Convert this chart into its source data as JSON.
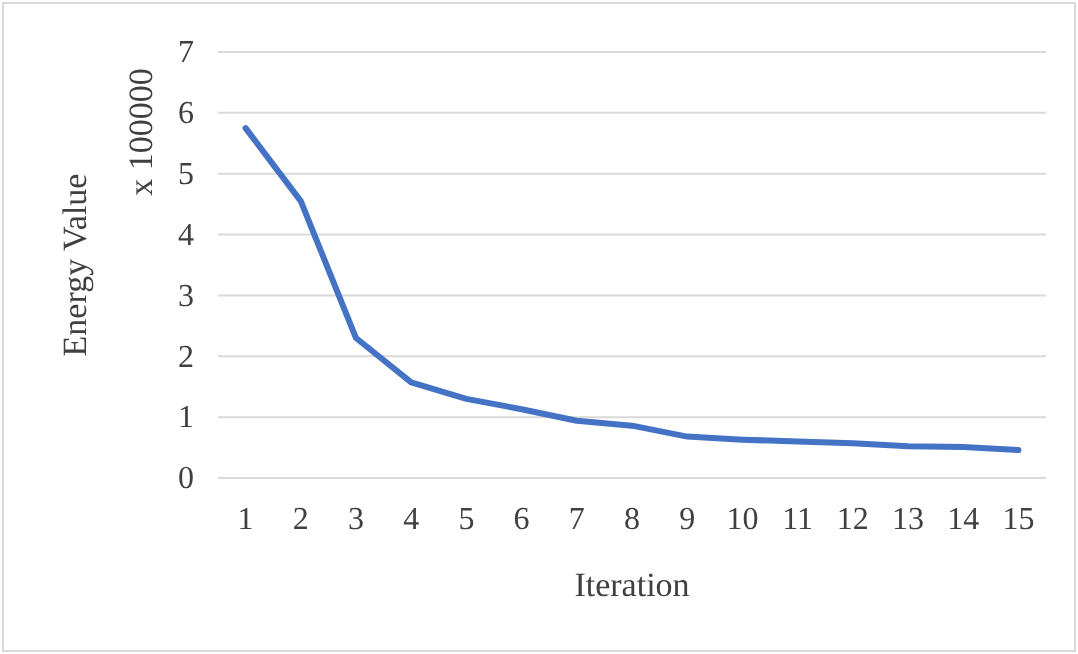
{
  "chart_data": {
    "type": "line",
    "xlabel": "Iteration",
    "ylabel": "Energy Value",
    "annotations": [
      "x 100000"
    ],
    "categories": [
      "1",
      "2",
      "3",
      "4",
      "5",
      "6",
      "7",
      "8",
      "9",
      "10",
      "11",
      "12",
      "13",
      "14",
      "15"
    ],
    "series": [
      {
        "color": "#4472c4",
        "values": [
          5.75,
          4.55,
          2.3,
          1.57,
          1.3,
          1.13,
          0.94,
          0.86,
          0.68,
          0.63,
          0.6,
          0.57,
          0.52,
          0.51,
          0.46
        ]
      }
    ],
    "ylim": [
      0,
      7
    ],
    "yticks": [
      0,
      1,
      2,
      3,
      4,
      5,
      6,
      7
    ],
    "grid": "y",
    "marker": "none",
    "line_style": "solid"
  }
}
